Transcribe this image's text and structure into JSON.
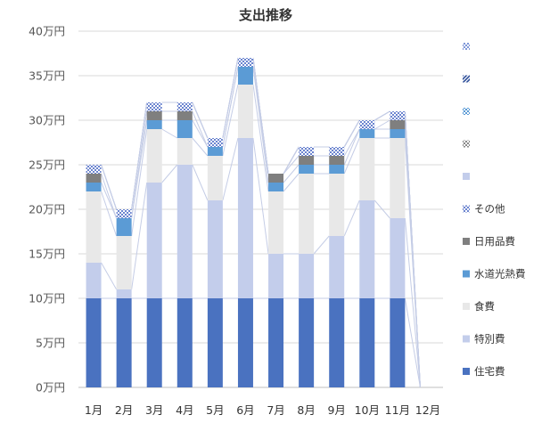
{
  "chart_data": {
    "type": "bar",
    "stacked": true,
    "title": "支出推移",
    "xlabel": "",
    "ylabel": "",
    "categories": [
      "1月",
      "2月",
      "3月",
      "4月",
      "5月",
      "6月",
      "7月",
      "8月",
      "9月",
      "10月",
      "11月",
      "12月"
    ],
    "y_ticks": [
      "0万円",
      "5万円",
      "10万円",
      "15万円",
      "20万円",
      "25万円",
      "30万円",
      "35万円",
      "40万円"
    ],
    "ylim": [
      0,
      40
    ],
    "y_step": 5,
    "unit": "万円",
    "grid": true,
    "legend_position": "right",
    "series": [
      {
        "name": "住宅費",
        "color": "#4a72c0",
        "pattern": "solid",
        "values": [
          10,
          10,
          10,
          10,
          10,
          10,
          10,
          10,
          10,
          10,
          10,
          0
        ]
      },
      {
        "name": "特別費",
        "color": "#c3cdeb",
        "pattern": "solid",
        "values": [
          4,
          1,
          13,
          15,
          11,
          18,
          5,
          5,
          7,
          11,
          9,
          0
        ]
      },
      {
        "name": "食費",
        "color": "#e8e8e8",
        "pattern": "solid",
        "values": [
          8,
          6,
          6,
          3,
          5,
          6,
          7,
          9,
          7,
          7,
          9,
          0
        ]
      },
      {
        "name": "水道光熱費",
        "color": "#5b9bd5",
        "pattern": "solid",
        "values": [
          1,
          2,
          1,
          2,
          1,
          2,
          1,
          1,
          1,
          1,
          1,
          0
        ]
      },
      {
        "name": "日用品費",
        "color": "#7f7f7f",
        "pattern": "solid",
        "values": [
          1,
          0,
          1,
          1,
          0,
          0,
          1,
          1,
          1,
          0,
          1,
          0
        ]
      },
      {
        "name": "その他",
        "color": "#6b84cf",
        "pattern": "checker",
        "values": [
          1,
          1,
          1,
          1,
          1,
          1,
          0,
          1,
          1,
          1,
          1,
          0
        ]
      },
      {
        "name": "",
        "color": "#c3cdeb",
        "pattern": "solid",
        "values": [
          0,
          0,
          0,
          0,
          0,
          0,
          0,
          0,
          0,
          0,
          0,
          0
        ]
      },
      {
        "name": "",
        "color": "#8a8a8a",
        "pattern": "checker",
        "values": [
          0,
          0,
          0,
          0,
          0,
          0,
          0,
          0,
          0,
          0,
          0,
          0
        ]
      },
      {
        "name": "",
        "color": "#5b9bd5",
        "pattern": "checker",
        "values": [
          0,
          0,
          0,
          0,
          0,
          0,
          0,
          0,
          0,
          0,
          0,
          0
        ]
      },
      {
        "name": "",
        "color": "#2e4f9a",
        "pattern": "stripe",
        "values": [
          0,
          0,
          0,
          0,
          0,
          0,
          0,
          0,
          0,
          0,
          0,
          0
        ]
      },
      {
        "name": "",
        "color": "#7f97d8",
        "pattern": "checker",
        "values": [
          0,
          0,
          0,
          0,
          0,
          0,
          0,
          0,
          0,
          0,
          0,
          0
        ]
      }
    ],
    "legend_order": [
      10,
      9,
      8,
      7,
      6,
      5,
      4,
      3,
      2,
      1,
      0
    ]
  }
}
